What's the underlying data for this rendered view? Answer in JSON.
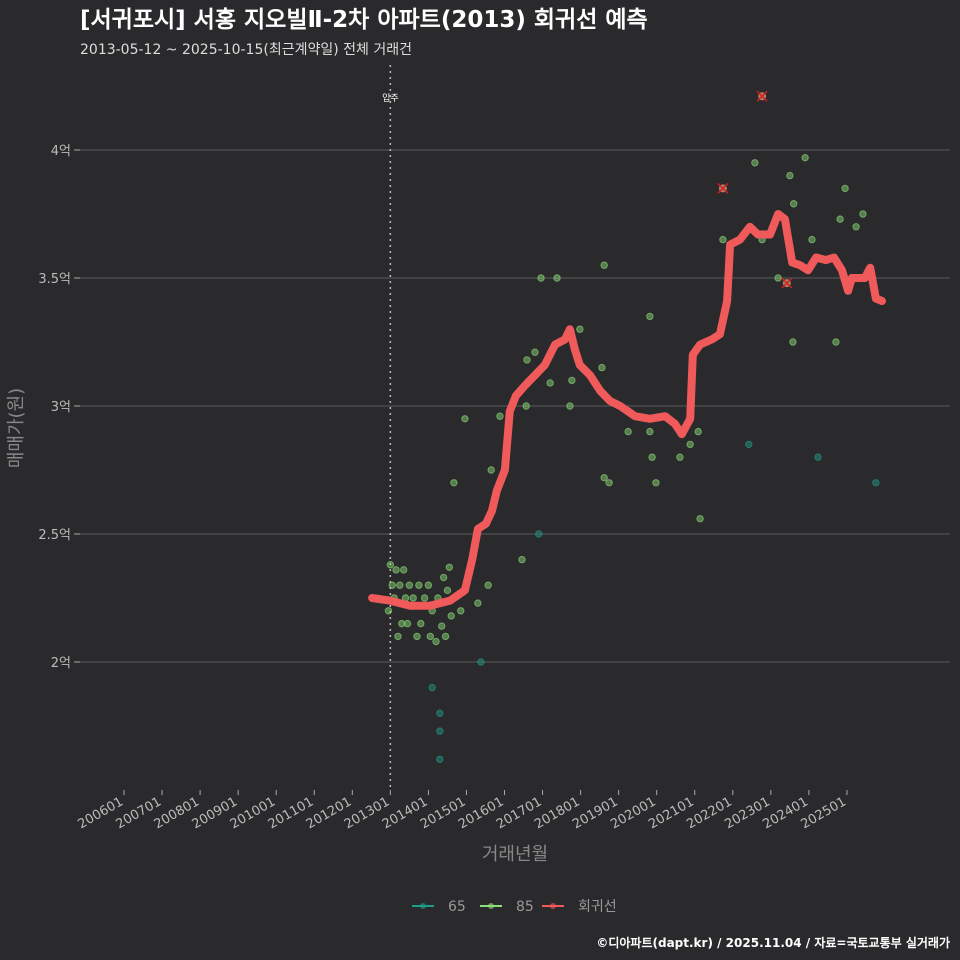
{
  "chart_data": {
    "type": "scatter",
    "title": "[서귀포시] 서홍 지오빌Ⅱ-2차 아파트(2013) 회귀선 예측",
    "subtitle": "2013-05-12 ~ 2025-10-15(최근계약일) 전체 거래건",
    "xlabel": "거래년월",
    "ylabel": "매매가(원)",
    "xlim": [
      2005.0,
      2026.3
    ],
    "ylim": [
      1.5,
      4.33
    ],
    "grid": true,
    "y_ticks": [
      {
        "v": 2,
        "label": "2억"
      },
      {
        "v": 2.5,
        "label": "2.5억"
      },
      {
        "v": 3,
        "label": "3억"
      },
      {
        "v": 3.5,
        "label": "3.5억"
      },
      {
        "v": 4,
        "label": "4억"
      }
    ],
    "x_ticks": [
      {
        "v": 2006,
        "label": "200601"
      },
      {
        "v": 2007,
        "label": "200701"
      },
      {
        "v": 2008,
        "label": "200801"
      },
      {
        "v": 2009,
        "label": "200901"
      },
      {
        "v": 2010,
        "label": "201001"
      },
      {
        "v": 2011,
        "label": "201101"
      },
      {
        "v": 2012,
        "label": "201201"
      },
      {
        "v": 2013,
        "label": "201301"
      },
      {
        "v": 2014,
        "label": "201401"
      },
      {
        "v": 2015,
        "label": "201501"
      },
      {
        "v": 2016,
        "label": "201601"
      },
      {
        "v": 2017,
        "label": "201701"
      },
      {
        "v": 2018,
        "label": "201801"
      },
      {
        "v": 2019,
        "label": "201901"
      },
      {
        "v": 2020,
        "label": "202001"
      },
      {
        "v": 2021,
        "label": "202101"
      },
      {
        "v": 2022,
        "label": "202201"
      },
      {
        "v": 2023,
        "label": "202301"
      },
      {
        "v": 2024,
        "label": "202401"
      },
      {
        "v": 2025,
        "label": "202501"
      }
    ],
    "annotation": {
      "x": 2013.0,
      "label": "입주"
    },
    "legend": {
      "placement": "bottom",
      "items": [
        {
          "label": "65",
          "color": "#1f9e89"
        },
        {
          "label": "85",
          "color": "#8fe07a"
        },
        {
          "label": "회귀선",
          "color": "#f05a5a"
        }
      ]
    },
    "series": [
      {
        "name": "65",
        "color": "#1f9e89",
        "points": [
          [
            2014.1,
            1.9
          ],
          [
            2014.3,
            1.8
          ],
          [
            2014.3,
            1.73
          ],
          [
            2014.3,
            1.62
          ],
          [
            2015.38,
            2.0
          ],
          [
            2016.9,
            2.5
          ],
          [
            2022.42,
            2.85
          ],
          [
            2024.24,
            2.8
          ],
          [
            2025.76,
            2.7
          ]
        ]
      },
      {
        "name": "85",
        "color": "#8fe07a",
        "points": [
          [
            2012.95,
            2.2
          ],
          [
            2013.0,
            2.38
          ],
          [
            2013.05,
            2.3
          ],
          [
            2013.1,
            2.25
          ],
          [
            2013.15,
            2.36
          ],
          [
            2013.2,
            2.1
          ],
          [
            2013.25,
            2.3
          ],
          [
            2013.3,
            2.15
          ],
          [
            2013.35,
            2.36
          ],
          [
            2013.4,
            2.25
          ],
          [
            2013.45,
            2.15
          ],
          [
            2013.5,
            2.3
          ],
          [
            2013.6,
            2.25
          ],
          [
            2013.7,
            2.1
          ],
          [
            2013.75,
            2.3
          ],
          [
            2013.8,
            2.15
          ],
          [
            2013.9,
            2.25
          ],
          [
            2014.0,
            2.3
          ],
          [
            2014.05,
            2.1
          ],
          [
            2014.1,
            2.2
          ],
          [
            2014.2,
            2.08
          ],
          [
            2014.25,
            2.25
          ],
          [
            2014.35,
            2.14
          ],
          [
            2014.4,
            2.33
          ],
          [
            2014.45,
            2.1
          ],
          [
            2014.5,
            2.28
          ],
          [
            2014.55,
            2.37
          ],
          [
            2014.6,
            2.18
          ],
          [
            2014.67,
            2.7
          ],
          [
            2014.85,
            2.2
          ],
          [
            2014.96,
            2.95
          ],
          [
            2015.3,
            2.23
          ],
          [
            2015.57,
            2.3
          ],
          [
            2015.65,
            2.75
          ],
          [
            2015.88,
            2.96
          ],
          [
            2016.46,
            2.4
          ],
          [
            2016.57,
            3.0
          ],
          [
            2016.59,
            3.18
          ],
          [
            2016.8,
            3.21
          ],
          [
            2016.96,
            3.5
          ],
          [
            2017.2,
            3.09
          ],
          [
            2017.38,
            3.5
          ],
          [
            2017.72,
            3.0
          ],
          [
            2017.77,
            3.1
          ],
          [
            2017.98,
            3.3
          ],
          [
            2018.56,
            3.15
          ],
          [
            2018.62,
            3.55
          ],
          [
            2018.62,
            2.72
          ],
          [
            2018.75,
            2.7
          ],
          [
            2019.25,
            2.9
          ],
          [
            2019.82,
            3.35
          ],
          [
            2019.82,
            2.9
          ],
          [
            2019.88,
            2.8
          ],
          [
            2019.98,
            2.7
          ],
          [
            2020.61,
            2.8
          ],
          [
            2020.88,
            2.85
          ],
          [
            2021.09,
            2.9
          ],
          [
            2021.14,
            2.56
          ],
          [
            2021.74,
            3.65
          ],
          [
            2022.58,
            3.95
          ],
          [
            2022.77,
            3.65
          ],
          [
            2023.19,
            3.5
          ],
          [
            2023.5,
            3.9
          ],
          [
            2023.58,
            3.25
          ],
          [
            2023.6,
            3.79
          ],
          [
            2023.9,
            3.97
          ],
          [
            2024.08,
            3.65
          ],
          [
            2024.71,
            3.25
          ],
          [
            2024.82,
            3.73
          ],
          [
            2024.95,
            3.85
          ],
          [
            2025.24,
            3.7
          ],
          [
            2025.42,
            3.75
          ]
        ]
      },
      {
        "name": "회귀선",
        "color": "#f05a5a",
        "points": [
          [
            2012.52,
            2.25
          ],
          [
            2012.99,
            2.24
          ],
          [
            2013.52,
            2.22
          ],
          [
            2014.04,
            2.22
          ],
          [
            2014.57,
            2.24
          ],
          [
            2014.96,
            2.28
          ],
          [
            2015.15,
            2.4
          ],
          [
            2015.3,
            2.52
          ],
          [
            2015.51,
            2.54
          ],
          [
            2015.67,
            2.59
          ],
          [
            2015.8,
            2.67
          ],
          [
            2016.01,
            2.75
          ],
          [
            2016.14,
            2.98
          ],
          [
            2016.3,
            3.04
          ],
          [
            2016.54,
            3.08
          ],
          [
            2016.8,
            3.12
          ],
          [
            2017.06,
            3.16
          ],
          [
            2017.33,
            3.24
          ],
          [
            2017.59,
            3.26
          ],
          [
            2017.72,
            3.3
          ],
          [
            2017.85,
            3.22
          ],
          [
            2017.98,
            3.16
          ],
          [
            2018.25,
            3.12
          ],
          [
            2018.51,
            3.06
          ],
          [
            2018.77,
            3.02
          ],
          [
            2019.04,
            3.0
          ],
          [
            2019.43,
            2.96
          ],
          [
            2019.82,
            2.95
          ],
          [
            2020.22,
            2.96
          ],
          [
            2020.48,
            2.93
          ],
          [
            2020.66,
            2.89
          ],
          [
            2020.88,
            2.95
          ],
          [
            2020.95,
            3.2
          ],
          [
            2021.14,
            3.24
          ],
          [
            2021.45,
            3.26
          ],
          [
            2021.66,
            3.28
          ],
          [
            2021.85,
            3.41
          ],
          [
            2021.93,
            3.63
          ],
          [
            2022.19,
            3.65
          ],
          [
            2022.45,
            3.7
          ],
          [
            2022.66,
            3.67
          ],
          [
            2022.98,
            3.67
          ],
          [
            2023.19,
            3.75
          ],
          [
            2023.37,
            3.73
          ],
          [
            2023.56,
            3.56
          ],
          [
            2023.77,
            3.55
          ],
          [
            2023.98,
            3.53
          ],
          [
            2024.19,
            3.58
          ],
          [
            2024.45,
            3.57
          ],
          [
            2024.66,
            3.58
          ],
          [
            2024.87,
            3.53
          ],
          [
            2025.03,
            3.45
          ],
          [
            2025.13,
            3.5
          ],
          [
            2025.47,
            3.5
          ],
          [
            2025.61,
            3.54
          ],
          [
            2025.76,
            3.42
          ],
          [
            2025.92,
            3.41
          ]
        ]
      }
    ],
    "outliers": [
      [
        2021.74,
        3.85
      ],
      [
        2022.77,
        4.21
      ],
      [
        2023.42,
        3.48
      ]
    ]
  },
  "credit": "©디아파트(dapt.kr) / 2025.11.04 / 자료=국토교통부 실거래가"
}
